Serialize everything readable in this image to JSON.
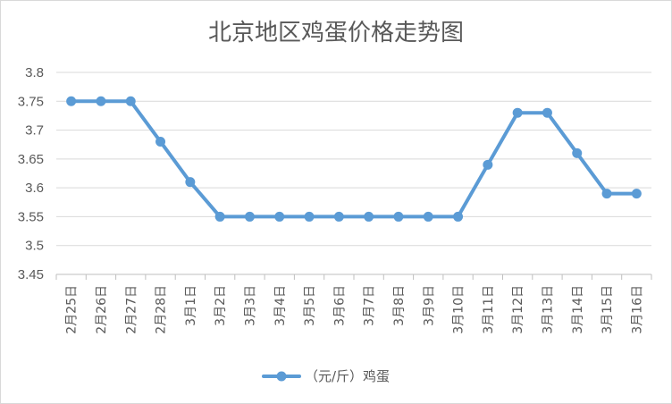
{
  "chart_data": {
    "type": "line",
    "title": "北京地区鸡蛋价格走势图",
    "xlabel": "",
    "ylabel": "",
    "categories": [
      "2月25日",
      "2月26日",
      "2月27日",
      "2月28日",
      "3月1日",
      "3月2日",
      "3月3日",
      "3月4日",
      "3月5日",
      "3月6日",
      "3月7日",
      "3月8日",
      "3月9日",
      "3月10日",
      "3月11日",
      "3月12日",
      "3月13日",
      "3月14日",
      "3月15日",
      "3月16日"
    ],
    "series": [
      {
        "name": "（元/斤）鸡蛋",
        "color": "#5b9bd5",
        "values": [
          3.75,
          3.75,
          3.75,
          3.68,
          3.61,
          3.55,
          3.55,
          3.55,
          3.55,
          3.55,
          3.55,
          3.55,
          3.55,
          3.55,
          3.64,
          3.73,
          3.73,
          3.66,
          3.59,
          3.59
        ]
      }
    ],
    "ylim": [
      3.45,
      3.8
    ],
    "yticks": [
      "3.45",
      "3.5",
      "3.55",
      "3.6",
      "3.65",
      "3.7",
      "3.75",
      "3.8"
    ],
    "grid": true,
    "legend": "bottom"
  }
}
